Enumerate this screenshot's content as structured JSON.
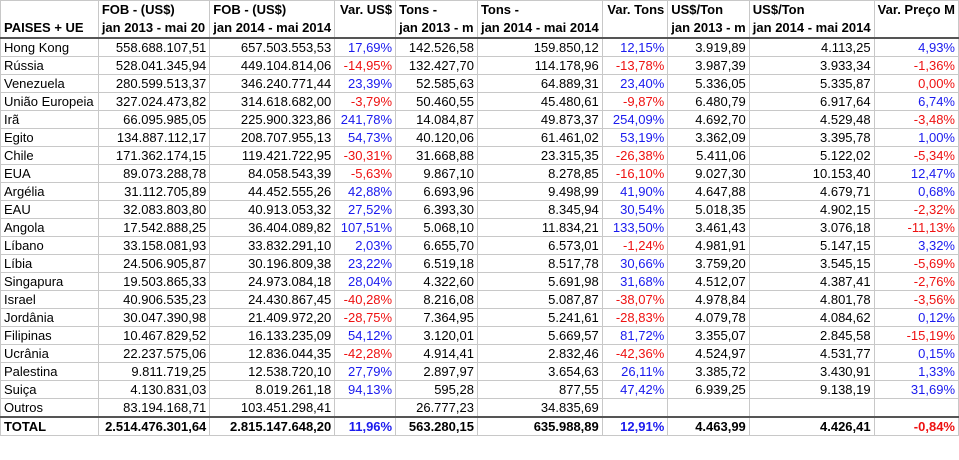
{
  "colors": {
    "positive": "#1a1aee",
    "negative": "#ee1111",
    "grid": "#c8c8c8"
  },
  "headers": {
    "row1": [
      "",
      "FOB  - (US$)",
      "FOB - (US$)",
      "Var. US$",
      "Tons -",
      "Tons -",
      "Var. Tons",
      "US$/Ton",
      "US$/Ton",
      "Var. Preço M"
    ],
    "row2": [
      "PAISES + UE",
      "jan 2013 - mai 20",
      "jan 2014 - mai 2014",
      "",
      "jan 2013 - m",
      "jan 2014 - mai 2014",
      "",
      "jan 2013 - m",
      "jan 2014 - mai 2014",
      ""
    ]
  },
  "rows": [
    {
      "pais": "Hong Kong",
      "fob13": "558.688.107,51",
      "fob14": "657.503.553,53",
      "var_usd": "17,69%",
      "tons13": "142.526,58",
      "tons14": "159.850,12",
      "var_tons": "12,15%",
      "ust13": "3.919,89",
      "ust14": "4.113,25",
      "var_preco": "4,93%",
      "s1": "pos",
      "s2": "pos",
      "s3": "pos"
    },
    {
      "pais": "Rússia",
      "fob13": "528.041.345,94",
      "fob14": "449.104.814,06",
      "var_usd": "-14,95%",
      "tons13": "132.427,70",
      "tons14": "114.178,96",
      "var_tons": "-13,78%",
      "ust13": "3.987,39",
      "ust14": "3.933,34",
      "var_preco": "-1,36%",
      "s1": "neg",
      "s2": "neg",
      "s3": "neg"
    },
    {
      "pais": "Venezuela",
      "fob13": "280.599.513,37",
      "fob14": "346.240.771,44",
      "var_usd": "23,39%",
      "tons13": "52.585,63",
      "tons14": "64.889,31",
      "var_tons": "23,40%",
      "ust13": "5.336,05",
      "ust14": "5.335,87",
      "var_preco": "0,00%",
      "s1": "pos",
      "s2": "pos",
      "s3": "neg"
    },
    {
      "pais": "União Europeia",
      "fob13": "327.024.473,82",
      "fob14": "314.618.682,00",
      "var_usd": "-3,79%",
      "tons13": "50.460,55",
      "tons14": "45.480,61",
      "var_tons": "-9,87%",
      "ust13": "6.480,79",
      "ust14": "6.917,64",
      "var_preco": "6,74%",
      "s1": "neg",
      "s2": "neg",
      "s3": "pos"
    },
    {
      "pais": "Irã",
      "fob13": "66.095.985,05",
      "fob14": "225.900.323,86",
      "var_usd": "241,78%",
      "tons13": "14.084,87",
      "tons14": "49.873,37",
      "var_tons": "254,09%",
      "ust13": "4.692,70",
      "ust14": "4.529,48",
      "var_preco": "-3,48%",
      "s1": "pos",
      "s2": "pos",
      "s3": "neg"
    },
    {
      "pais": "Egito",
      "fob13": "134.887.112,17",
      "fob14": "208.707.955,13",
      "var_usd": "54,73%",
      "tons13": "40.120,06",
      "tons14": "61.461,02",
      "var_tons": "53,19%",
      "ust13": "3.362,09",
      "ust14": "3.395,78",
      "var_preco": "1,00%",
      "s1": "pos",
      "s2": "pos",
      "s3": "pos"
    },
    {
      "pais": "Chile",
      "fob13": "171.362.174,15",
      "fob14": "119.421.722,95",
      "var_usd": "-30,31%",
      "tons13": "31.668,88",
      "tons14": "23.315,35",
      "var_tons": "-26,38%",
      "ust13": "5.411,06",
      "ust14": "5.122,02",
      "var_preco": "-5,34%",
      "s1": "neg",
      "s2": "neg",
      "s3": "neg"
    },
    {
      "pais": "EUA",
      "fob13": "89.073.288,78",
      "fob14": "84.058.543,39",
      "var_usd": "-5,63%",
      "tons13": "9.867,10",
      "tons14": "8.278,85",
      "var_tons": "-16,10%",
      "ust13": "9.027,30",
      "ust14": "10.153,40",
      "var_preco": "12,47%",
      "s1": "neg",
      "s2": "neg",
      "s3": "pos"
    },
    {
      "pais": "Argélia",
      "fob13": "31.112.705,89",
      "fob14": "44.452.555,26",
      "var_usd": "42,88%",
      "tons13": "6.693,96",
      "tons14": "9.498,99",
      "var_tons": "41,90%",
      "ust13": "4.647,88",
      "ust14": "4.679,71",
      "var_preco": "0,68%",
      "s1": "pos",
      "s2": "pos",
      "s3": "pos"
    },
    {
      "pais": "EAU",
      "fob13": "32.083.803,80",
      "fob14": "40.913.053,32",
      "var_usd": "27,52%",
      "tons13": "6.393,30",
      "tons14": "8.345,94",
      "var_tons": "30,54%",
      "ust13": "5.018,35",
      "ust14": "4.902,15",
      "var_preco": "-2,32%",
      "s1": "pos",
      "s2": "pos",
      "s3": "neg"
    },
    {
      "pais": "Angola",
      "fob13": "17.542.888,25",
      "fob14": "36.404.089,82",
      "var_usd": "107,51%",
      "tons13": "5.068,10",
      "tons14": "11.834,21",
      "var_tons": "133,50%",
      "ust13": "3.461,43",
      "ust14": "3.076,18",
      "var_preco": "-11,13%",
      "s1": "pos",
      "s2": "pos",
      "s3": "neg"
    },
    {
      "pais": "Líbano",
      "fob13": "33.158.081,93",
      "fob14": "33.832.291,10",
      "var_usd": "2,03%",
      "tons13": "6.655,70",
      "tons14": "6.573,01",
      "var_tons": "-1,24%",
      "ust13": "4.981,91",
      "ust14": "5.147,15",
      "var_preco": "3,32%",
      "s1": "pos",
      "s2": "neg",
      "s3": "pos"
    },
    {
      "pais": "Líbia",
      "fob13": "24.506.905,87",
      "fob14": "30.196.809,38",
      "var_usd": "23,22%",
      "tons13": "6.519,18",
      "tons14": "8.517,78",
      "var_tons": "30,66%",
      "ust13": "3.759,20",
      "ust14": "3.545,15",
      "var_preco": "-5,69%",
      "s1": "pos",
      "s2": "pos",
      "s3": "neg"
    },
    {
      "pais": "Singapura",
      "fob13": "19.503.865,33",
      "fob14": "24.973.084,18",
      "var_usd": "28,04%",
      "tons13": "4.322,60",
      "tons14": "5.691,98",
      "var_tons": "31,68%",
      "ust13": "4.512,07",
      "ust14": "4.387,41",
      "var_preco": "-2,76%",
      "s1": "pos",
      "s2": "pos",
      "s3": "neg"
    },
    {
      "pais": "Israel",
      "fob13": "40.906.535,23",
      "fob14": "24.430.867,45",
      "var_usd": "-40,28%",
      "tons13": "8.216,08",
      "tons14": "5.087,87",
      "var_tons": "-38,07%",
      "ust13": "4.978,84",
      "ust14": "4.801,78",
      "var_preco": "-3,56%",
      "s1": "neg",
      "s2": "neg",
      "s3": "neg"
    },
    {
      "pais": "Jordânia",
      "fob13": "30.047.390,98",
      "fob14": "21.409.972,20",
      "var_usd": "-28,75%",
      "tons13": "7.364,95",
      "tons14": "5.241,61",
      "var_tons": "-28,83%",
      "ust13": "4.079,78",
      "ust14": "4.084,62",
      "var_preco": "0,12%",
      "s1": "neg",
      "s2": "neg",
      "s3": "pos"
    },
    {
      "pais": "Filipinas",
      "fob13": "10.467.829,52",
      "fob14": "16.133.235,09",
      "var_usd": "54,12%",
      "tons13": "3.120,01",
      "tons14": "5.669,57",
      "var_tons": "81,72%",
      "ust13": "3.355,07",
      "ust14": "2.845,58",
      "var_preco": "-15,19%",
      "s1": "pos",
      "s2": "pos",
      "s3": "neg"
    },
    {
      "pais": "Ucrânia",
      "fob13": "22.237.575,06",
      "fob14": "12.836.044,35",
      "var_usd": "-42,28%",
      "tons13": "4.914,41",
      "tons14": "2.832,46",
      "var_tons": "-42,36%",
      "ust13": "4.524,97",
      "ust14": "4.531,77",
      "var_preco": "0,15%",
      "s1": "neg",
      "s2": "neg",
      "s3": "pos"
    },
    {
      "pais": "Palestina",
      "fob13": "9.811.719,25",
      "fob14": "12.538.720,10",
      "var_usd": "27,79%",
      "tons13": "2.897,97",
      "tons14": "3.654,63",
      "var_tons": "26,11%",
      "ust13": "3.385,72",
      "ust14": "3.430,91",
      "var_preco": "1,33%",
      "s1": "pos",
      "s2": "pos",
      "s3": "pos"
    },
    {
      "pais": "Suiça",
      "fob13": "4.130.831,03",
      "fob14": "8.019.261,18",
      "var_usd": "94,13%",
      "tons13": "595,28",
      "tons14": "877,55",
      "var_tons": "47,42%",
      "ust13": "6.939,25",
      "ust14": "9.138,19",
      "var_preco": "31,69%",
      "s1": "pos",
      "s2": "pos",
      "s3": "pos"
    },
    {
      "pais": "Outros",
      "fob13": "83.194.168,71",
      "fob14": "103.451.298,41",
      "var_usd": "",
      "tons13": "26.777,23",
      "tons14": "34.835,69",
      "var_tons": "",
      "ust13": "",
      "ust14": "",
      "var_preco": "",
      "s1": "",
      "s2": "",
      "s3": ""
    }
  ],
  "total": {
    "pais": "TOTAL",
    "fob13": "2.514.476.301,64",
    "fob14": "2.815.147.648,20",
    "var_usd": "11,96%",
    "tons13": "563.280,15",
    "tons14": "635.988,89",
    "var_tons": "12,91%",
    "ust13": "4.463,99",
    "ust14": "4.426,41",
    "var_preco": "-0,84%",
    "s1": "pos",
    "s2": "pos",
    "s3": "neg"
  }
}
